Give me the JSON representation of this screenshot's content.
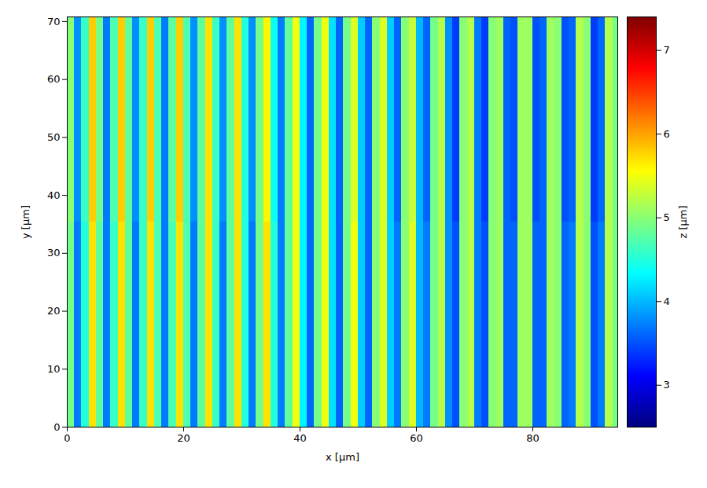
{
  "chart_data": {
    "type": "heatmap",
    "x_label": "x [µm]",
    "y_label": "y [µm]",
    "xlim": [
      0,
      94.6
    ],
    "ylim": [
      0,
      70.8
    ],
    "xticks": [
      0,
      20,
      40,
      60,
      80
    ],
    "yticks": [
      0,
      10,
      20,
      30,
      40,
      50,
      60,
      70
    ],
    "x_edges": [
      0,
      1.25,
      2.5,
      3.75,
      5,
      6.25,
      7.5,
      8.75,
      10,
      11.25,
      12.5,
      13.75,
      15,
      16.25,
      17.5,
      18.75,
      20,
      21.25,
      22.5,
      23.75,
      25,
      26.25,
      27.5,
      28.75,
      30,
      31.25,
      32.5,
      33.75,
      35,
      36.25,
      37.5,
      38.75,
      40,
      41.25,
      42.5,
      43.75,
      45,
      46.25,
      47.5,
      48.75,
      50,
      51.25,
      52.5,
      53.75,
      55,
      56.25,
      57.5,
      58.75,
      60,
      61.25,
      62.5,
      63.75,
      65,
      66.25,
      67.5,
      68.75,
      70,
      71.25,
      72.5,
      73.75,
      75,
      76.25,
      77.5,
      78.75,
      80,
      81.25,
      82.5,
      83.75,
      85,
      86.25,
      87.5,
      88.75,
      90,
      91.25,
      92.5,
      93.75,
      95
    ],
    "y_edges": [
      0,
      35.4,
      70.8
    ],
    "z": [
      [
        4.9,
        3.7,
        4.5,
        5.7,
        4.8,
        3.7,
        4.6,
        5.7,
        4.8,
        3.7,
        4.6,
        5.7,
        4.7,
        3.7,
        4.7,
        5.7,
        4.7,
        3.7,
        4.8,
        5.7,
        4.6,
        3.7,
        4.8,
        5.7,
        4.5,
        3.7,
        4.9,
        5.7,
        4.5,
        3.7,
        4.8,
        5.5,
        4.3,
        3.6,
        4.9,
        5.5,
        4.2,
        3.6,
        4.9,
        5.5,
        4.1,
        3.6,
        5.0,
        5.4,
        4.1,
        3.7,
        5.0,
        5.4,
        4.0,
        3.7,
        4.9,
        5.2,
        3.8,
        3.5,
        5.0,
        5.2,
        3.7,
        3.5,
        5.0,
        5.1,
        3.6,
        3.6,
        5.1,
        5.1,
        3.6,
        3.6,
        5.1,
        5.0,
        3.6,
        3.7,
        5.2,
        5.0,
        3.5,
        3.7,
        5.2,
        4.9
      ],
      [
        5.0,
        3.8,
        4.6,
        5.8,
        4.9,
        3.7,
        4.7,
        5.8,
        4.8,
        3.8,
        4.6,
        5.8,
        4.7,
        3.7,
        4.8,
        5.8,
        4.7,
        3.8,
        4.8,
        5.7,
        4.6,
        3.8,
        4.8,
        5.7,
        4.5,
        3.8,
        4.9,
        5.6,
        4.4,
        3.7,
        4.8,
        5.5,
        4.3,
        3.6,
        4.9,
        5.5,
        4.2,
        3.6,
        4.9,
        5.4,
        4.1,
        3.6,
        5.0,
        5.4,
        4.1,
        3.6,
        5.0,
        5.3,
        4.0,
        3.6,
        4.9,
        5.2,
        3.8,
        3.4,
        5.0,
        5.2,
        3.7,
        3.4,
        5.0,
        5.1,
        3.6,
        3.5,
        5.1,
        5.1,
        3.5,
        3.6,
        5.1,
        5.0,
        3.5,
        3.6,
        5.2,
        5.0,
        3.4,
        3.6,
        5.2,
        4.9
      ]
    ],
    "colorbar": {
      "label": "z [µm]",
      "range": [
        2.5,
        7.4
      ],
      "ticks": [
        3,
        4,
        5,
        6,
        7
      ]
    }
  }
}
